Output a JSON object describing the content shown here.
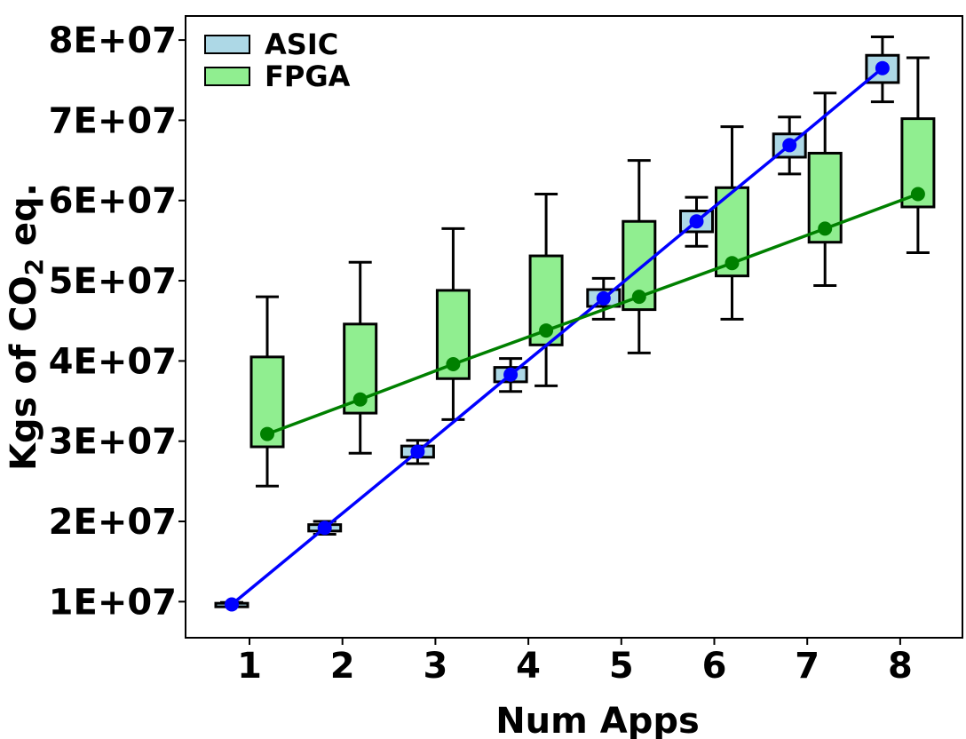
{
  "chart_data": {
    "type": "box",
    "xlabel": "Num Apps",
    "ylabel_main": "Kgs of CO",
    "ylabel_sub": "2",
    "ylabel_tail": " eq.",
    "categories": [
      "1",
      "2",
      "3",
      "4",
      "5",
      "6",
      "7",
      "8"
    ],
    "ylim": [
      5500000,
      83000000
    ],
    "yticks": [
      10000000,
      20000000,
      30000000,
      40000000,
      50000000,
      60000000,
      70000000,
      80000000
    ],
    "ytick_labels": [
      "1E+07",
      "2E+07",
      "3E+07",
      "4E+07",
      "5E+07",
      "6E+07",
      "7E+07",
      "8E+07"
    ],
    "legend_position": "top-left",
    "series": [
      {
        "name": "ASIC",
        "box_color": "#add8e6",
        "line_color": "#0000ff",
        "boxes": [
          {
            "min": 9500000,
            "q1": 9500000,
            "q3": 9800000,
            "max": 9900000,
            "mean": 9650000
          },
          {
            "min": 18400000,
            "q1": 18800000,
            "q3": 19600000,
            "max": 20000000,
            "mean": 19200000
          },
          {
            "min": 27200000,
            "q1": 28000000,
            "q3": 29400000,
            "max": 30100000,
            "mean": 28700000
          },
          {
            "min": 36200000,
            "q1": 37400000,
            "q3": 39200000,
            "max": 40300000,
            "mean": 38300000
          },
          {
            "min": 45200000,
            "q1": 46800000,
            "q3": 48900000,
            "max": 50300000,
            "mean": 47800000
          },
          {
            "min": 54300000,
            "q1": 56100000,
            "q3": 58700000,
            "max": 60400000,
            "mean": 57400000
          },
          {
            "min": 63300000,
            "q1": 65400000,
            "q3": 68300000,
            "max": 70400000,
            "mean": 66900000
          },
          {
            "min": 72300000,
            "q1": 74700000,
            "q3": 78100000,
            "max": 80400000,
            "mean": 76500000
          }
        ]
      },
      {
        "name": "FPGA",
        "box_color": "#90ee90",
        "line_color": "#008000",
        "boxes": [
          {
            "min": 24400000,
            "q1": 29300000,
            "q3": 40500000,
            "max": 48000000,
            "mean": 30900000
          },
          {
            "min": 28500000,
            "q1": 33500000,
            "q3": 44600000,
            "max": 52300000,
            "mean": 35200000
          },
          {
            "min": 32700000,
            "q1": 37800000,
            "q3": 48800000,
            "max": 56500000,
            "mean": 39600000
          },
          {
            "min": 36900000,
            "q1": 42000000,
            "q3": 53100000,
            "max": 60800000,
            "mean": 43800000
          },
          {
            "min": 41000000,
            "q1": 46400000,
            "q3": 57400000,
            "max": 65000000,
            "mean": 48000000
          },
          {
            "min": 45200000,
            "q1": 50600000,
            "q3": 61600000,
            "max": 69200000,
            "mean": 52200000
          },
          {
            "min": 49400000,
            "q1": 54800000,
            "q3": 65900000,
            "max": 73400000,
            "mean": 56500000
          },
          {
            "min": 53500000,
            "q1": 59200000,
            "q3": 70200000,
            "max": 77800000,
            "mean": 60800000
          }
        ]
      }
    ]
  }
}
